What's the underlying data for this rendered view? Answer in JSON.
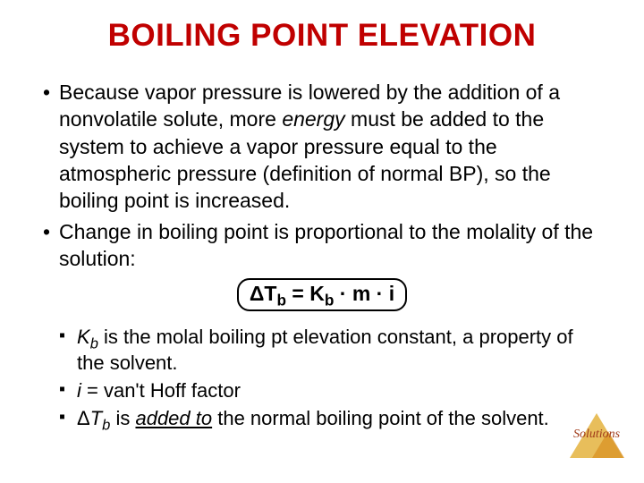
{
  "title": {
    "text": "BOILING POINT ELEVATION",
    "color": "#c00000",
    "fontsize": 35
  },
  "body_fontsize": 23,
  "sub_fontsize": 22,
  "bullet1_parts": {
    "p1": "Because vapor pressure is lowered by the addition of a nonvolatile solute, more ",
    "p2_italic": "energy",
    "p3": " must be added to the system to achieve a vapor pressure equal to the atmospheric pressure (definition of normal BP), so the boiling point is increased."
  },
  "bullet2": " Change in boiling point is proportional to the molality of the solution:",
  "formula": {
    "delta": "Δ",
    "T": "T",
    "b": "b",
    "eq": " = ",
    "K": "K",
    "dot": " · ",
    "m": "m",
    "i": " i"
  },
  "sub1_parts": {
    "p1_italic": "K",
    "p1_sub": "b",
    "p2": " is the molal boiling pt elevation constant, a property of the solvent."
  },
  "sub2_parts": {
    "p1_italic": "i",
    "p2": " = van't Hoff factor"
  },
  "sub3_parts": {
    "p1": "Δ",
    "p2_italic": "T",
    "p2_sub": "b",
    "p3": " is ",
    "p4_italic_under": "added to",
    "p5": " the normal boiling point of the solvent."
  },
  "watermark": "Solutions"
}
